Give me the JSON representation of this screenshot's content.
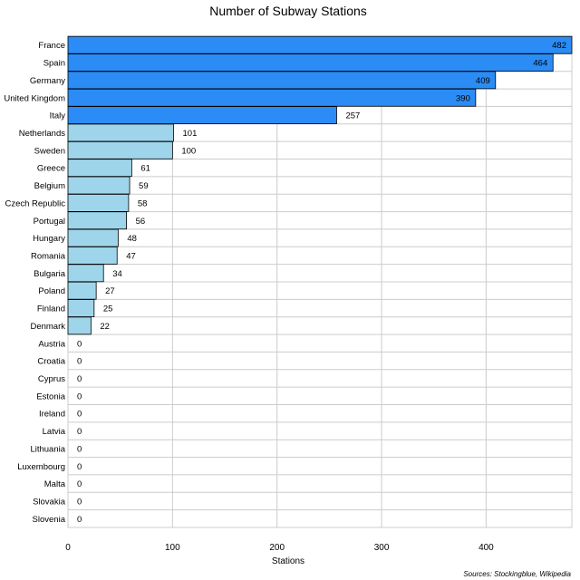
{
  "chart_data": {
    "type": "bar",
    "orientation": "horizontal",
    "title": "Number of Subway Stations",
    "xlabel": "Stations",
    "ylabel": "",
    "xlim": [
      0,
      482
    ],
    "xticks": [
      0,
      100,
      200,
      300,
      400
    ],
    "grid": true,
    "source": "Sources: Stockingblue, Wikipedia",
    "colors": {
      "high": "#2b8cf5",
      "low": "#9fd5ea",
      "edge": "#000000",
      "grid": "#cccccc"
    },
    "categories": [
      "France",
      "Spain",
      "Germany",
      "United Kingdom",
      "Italy",
      "Netherlands",
      "Sweden",
      "Greece",
      "Belgium",
      "Czech Republic",
      "Portugal",
      "Hungary",
      "Romania",
      "Bulgaria",
      "Poland",
      "Finland",
      "Denmark",
      "Austria",
      "Croatia",
      "Cyprus",
      "Estonia",
      "Ireland",
      "Latvia",
      "Lithuania",
      "Luxembourg",
      "Malta",
      "Slovakia",
      "Slovenia"
    ],
    "values": [
      482,
      464,
      409,
      390,
      257,
      101,
      100,
      61,
      59,
      58,
      56,
      48,
      47,
      34,
      27,
      25,
      22,
      0,
      0,
      0,
      0,
      0,
      0,
      0,
      0,
      0,
      0,
      0
    ],
    "highlight_top_n": 5
  }
}
